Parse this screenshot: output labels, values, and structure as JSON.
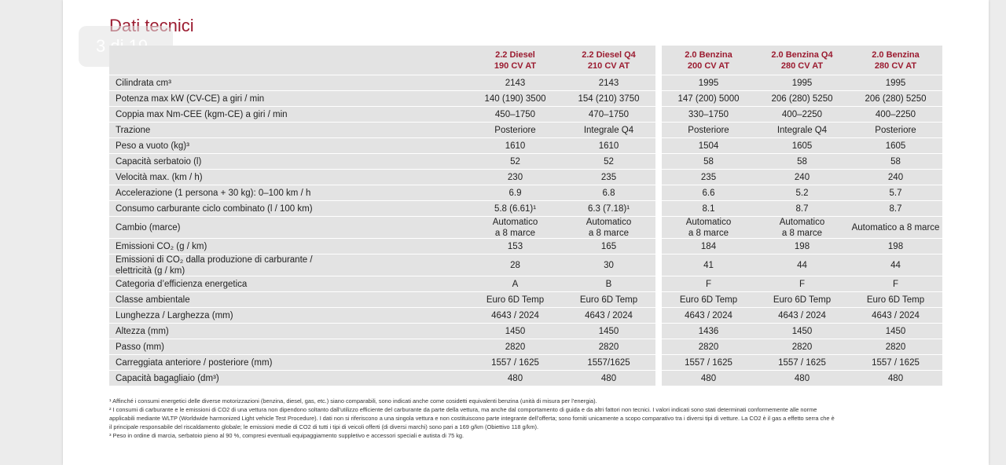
{
  "page_indicator": "3 di 19",
  "title": "Dati tecnici",
  "table": {
    "columns": [
      "2.2 Diesel\n190 CV AT",
      "2.2 Diesel Q4\n210 CV AT",
      "2.0 Benzina\n200 CV AT",
      "2.0 Benzina Q4\n280 CV AT",
      "2.0 Benzina\n280 CV AT"
    ],
    "rows": [
      {
        "label": "Cilindrata cm³",
        "values": [
          "2143",
          "2143",
          "1995",
          "1995",
          "1995"
        ]
      },
      {
        "label": "Potenza max kW (CV-CE) a giri / min",
        "values": [
          "140 (190) 3500",
          "154 (210) 3750",
          "147 (200) 5000",
          "206 (280) 5250",
          "206 (280) 5250"
        ]
      },
      {
        "label": "Coppia max Nm-CEE (kgm-CE) a giri / min",
        "values": [
          "450–1750",
          "470–1750",
          "330–1750",
          "400–2250",
          "400–2250"
        ]
      },
      {
        "label": "Trazione",
        "values": [
          "Posteriore",
          "Integrale Q4",
          "Posteriore",
          "Integrale Q4",
          "Posteriore"
        ]
      },
      {
        "label": "Peso a vuoto (kg)³",
        "values": [
          "1610",
          "1610",
          "1504",
          "1605",
          "1605"
        ]
      },
      {
        "label": "Capacità serbatoio (l)",
        "values": [
          "52",
          "52",
          "58",
          "58",
          "58"
        ]
      },
      {
        "label": "Velocità max. (km / h)",
        "values": [
          "230",
          "235",
          "235",
          "240",
          "240"
        ]
      },
      {
        "label": "Accelerazione (1 persona + 30 kg): 0–100 km / h",
        "values": [
          "6.9",
          "6.8",
          "6.6",
          "5.2",
          "5.7"
        ]
      },
      {
        "label": "Consumo carburante ciclo combinato (l / 100 km)",
        "values": [
          "5.8 (6.61)¹",
          "6.3 (7.18)¹",
          "8.1",
          "8.7",
          "8.7"
        ]
      },
      {
        "label": "Cambio (marce)",
        "values": [
          "Automatico\na 8 marce",
          "Automatico\na 8 marce",
          "Automatico\na 8 marce",
          "Automatico\na 8 marce",
          "Automatico a 8 marce"
        ]
      },
      {
        "label": "Emissioni CO₂ (g / km)",
        "values": [
          "153",
          "165",
          "184",
          "198",
          "198"
        ]
      },
      {
        "label": "Emissioni di CO₂ dalla produzione di carburante /\nelettricità (g / km)",
        "values": [
          "28",
          "30",
          "41",
          "44",
          "44"
        ]
      },
      {
        "label": "Categoria d’efficienza energetica",
        "values": [
          "A",
          "B",
          "F",
          "F",
          "F"
        ]
      },
      {
        "label": "Classe ambientale",
        "values": [
          "Euro 6D Temp",
          "Euro 6D Temp",
          "Euro 6D Temp",
          "Euro 6D Temp",
          "Euro 6D Temp"
        ]
      },
      {
        "label": "Lunghezza / Larghezza (mm)",
        "values": [
          "4643 / 2024",
          "4643 / 2024",
          "4643 / 2024",
          "4643 / 2024",
          "4643 / 2024"
        ]
      },
      {
        "label": "Altezza (mm)",
        "values": [
          "1450",
          "1450",
          "1436",
          "1450",
          "1450"
        ]
      },
      {
        "label": "Passo (mm)",
        "values": [
          "2820",
          "2820",
          "2820",
          "2820",
          "2820"
        ]
      },
      {
        "label": "Carreggiata anteriore / posteriore (mm)",
        "values": [
          "1557 / 1625",
          "1557/1625",
          "1557 / 1625",
          "1557 / 1625",
          "1557 / 1625"
        ]
      },
      {
        "label": "Capacità bagagliaio (dm³)",
        "values": [
          "480",
          "480",
          "480",
          "480",
          "480"
        ]
      }
    ]
  },
  "footnotes": [
    "¹ Affinché i consumi energetici delle diverse motorizzazioni (benzina, diesel, gas, etc.) siano comparabili, sono indicati anche come cosidetti equivalenti benzina (unità di misura per l’energia).",
    "² I consumi di carburante e le emissioni di CO2 di una vettura non dipendono soltanto dall’utilizzo efficiente del carburante da parte della vettura, ma anche dal comportamento di guida e da altri fattori non tecnici. I valori indicati sono stati determinati conformemente alle norme applicabili mediante WLTP (Worldwide harmonized Light vehicle Test Procedure). I dati non si riferiscono a una singola vettura e non costituiscono parte integrante dell’offerta; sono forniti unicamente a scopo comparativo tra i diversi tipi di vetture. La CO2 è il gas a effetto serra che è il principale responsabile del riscaldamento globale; le emissioni medie di CO2 di tutti i tipi di veicoli offerti (di diversi marchi) sono pari a 169 g/km (Obiettivo 118 g/km).",
    "³ Peso in ordine di marcia, serbatoio pieno al 90 %, compresi eventuali equipaggiamento suppletivo e accessori speciali e autista di 75 kg."
  ]
}
